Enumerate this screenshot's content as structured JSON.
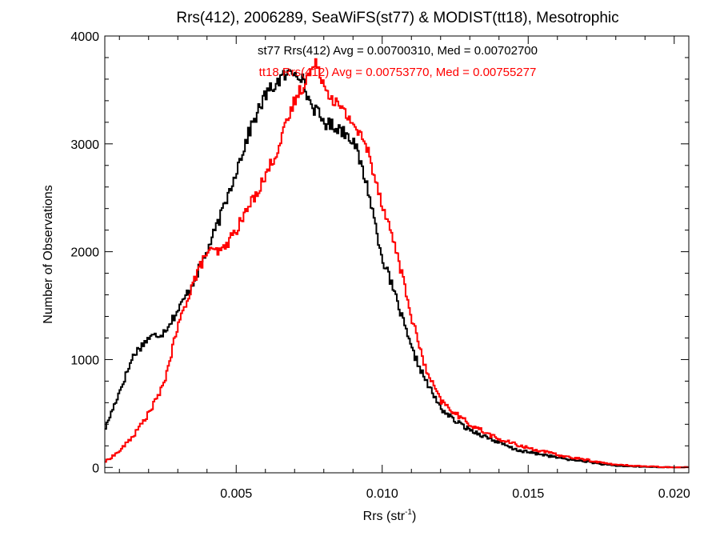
{
  "chart_data": {
    "type": "line",
    "step": true,
    "title": "Rrs(412), 2006289, SeaWiFS(st77) & MODIST(tt18), Mesotrophic",
    "xlabel_main": "Rrs (str",
    "xlabel_sup": "-1",
    "xlabel_close": ")",
    "ylabel": "Number of Observations",
    "xlim": [
      0.0005,
      0.0205
    ],
    "ylim": [
      -50,
      4000
    ],
    "xticks": [
      0.005,
      0.01,
      0.015,
      0.02
    ],
    "xtick_labels": [
      "0.005",
      "0.010",
      "0.015",
      "0.020"
    ],
    "yticks": [
      0,
      1000,
      2000,
      3000,
      4000
    ],
    "ytick_labels": [
      "0",
      "1000",
      "2000",
      "3000",
      "4000"
    ],
    "grid": false,
    "annotations": [
      {
        "text": "st77 Rrs(412) Avg = 0.00700310, Med = 0.00702700",
        "color": "#000000"
      },
      {
        "text": "tt18 Rrs(412) Avg = 0.00753770, Med = 0.00755277",
        "color": "#ff0000"
      }
    ],
    "series": [
      {
        "color": "#000000",
        "x": [
          0.0005,
          0.001,
          0.0015,
          0.002,
          0.0025,
          0.003,
          0.0035,
          0.004,
          0.0045,
          0.005,
          0.0055,
          0.006,
          0.0065,
          0.007,
          0.0072,
          0.0075,
          0.008,
          0.0085,
          0.009,
          0.0095,
          0.01,
          0.0105,
          0.011,
          0.0115,
          0.012,
          0.0125,
          0.013,
          0.0135,
          0.014,
          0.0145,
          0.015,
          0.0155,
          0.016,
          0.0165,
          0.017,
          0.0175,
          0.018,
          0.019,
          0.02
        ],
        "y": [
          350,
          700,
          1050,
          1200,
          1250,
          1450,
          1700,
          2000,
          2350,
          2750,
          3150,
          3450,
          3600,
          3680,
          3650,
          3400,
          3200,
          3150,
          3050,
          2600,
          1950,
          1550,
          1100,
          800,
          550,
          430,
          350,
          290,
          230,
          170,
          140,
          120,
          90,
          70,
          55,
          30,
          15,
          5,
          0
        ]
      },
      {
        "color": "#ff0000",
        "x": [
          0.0005,
          0.001,
          0.0015,
          0.002,
          0.0025,
          0.003,
          0.0035,
          0.004,
          0.0045,
          0.005,
          0.0055,
          0.006,
          0.0065,
          0.007,
          0.0075,
          0.0078,
          0.008,
          0.0085,
          0.009,
          0.0095,
          0.01,
          0.0105,
          0.011,
          0.0115,
          0.012,
          0.0125,
          0.013,
          0.0135,
          0.014,
          0.0145,
          0.015,
          0.0155,
          0.016,
          0.0165,
          0.017,
          0.0175,
          0.018,
          0.019,
          0.02
        ],
        "y": [
          50,
          150,
          300,
          500,
          750,
          1300,
          1700,
          2000,
          2000,
          2200,
          2450,
          2700,
          3000,
          3400,
          3650,
          3750,
          3550,
          3350,
          3200,
          2950,
          2450,
          2000,
          1400,
          900,
          620,
          500,
          400,
          330,
          260,
          220,
          180,
          150,
          115,
          90,
          70,
          45,
          25,
          10,
          0
        ]
      }
    ]
  }
}
